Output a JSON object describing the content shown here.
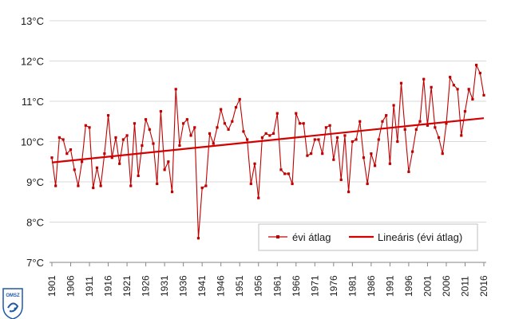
{
  "chart_data": {
    "type": "line",
    "ylim": [
      7,
      13
    ],
    "xlim": [
      1901,
      2016
    ],
    "yticks": [
      7,
      8,
      9,
      10,
      11,
      12,
      13
    ],
    "ytick_labels": [
      "7°C",
      "8°C",
      "9°C",
      "10°C",
      "11°C",
      "12°C",
      "13°C"
    ],
    "xticks": [
      1901,
      1906,
      1911,
      1916,
      1921,
      1926,
      1931,
      1936,
      1941,
      1946,
      1951,
      1956,
      1961,
      1966,
      1971,
      1976,
      1981,
      1986,
      1991,
      1996,
      2001,
      2006,
      2011,
      2016
    ],
    "xtick_labels": [
      "1901",
      "1906",
      "1911",
      "1916",
      "1921",
      "1926",
      "1931",
      "1936",
      "1941",
      "1946",
      "1951",
      "1956",
      "1961",
      "1966",
      "1971",
      "1976",
      "1981",
      "1986",
      "1991",
      "1996",
      "2001",
      "2006",
      "2011",
      "2016"
    ],
    "grid": "horizontal",
    "legend_position": "bottom-right",
    "series": [
      {
        "name": "évi átlag",
        "color": "#c00000",
        "marker": "square",
        "x": [
          1901,
          1902,
          1903,
          1904,
          1905,
          1906,
          1907,
          1908,
          1909,
          1910,
          1911,
          1912,
          1913,
          1914,
          1915,
          1916,
          1917,
          1918,
          1919,
          1920,
          1921,
          1922,
          1923,
          1924,
          1925,
          1926,
          1927,
          1928,
          1929,
          1930,
          1931,
          1932,
          1933,
          1934,
          1935,
          1936,
          1937,
          1938,
          1939,
          1940,
          1941,
          1942,
          1943,
          1944,
          1945,
          1946,
          1947,
          1948,
          1949,
          1950,
          1951,
          1952,
          1953,
          1954,
          1955,
          1956,
          1957,
          1958,
          1959,
          1960,
          1961,
          1962,
          1963,
          1964,
          1965,
          1966,
          1967,
          1968,
          1969,
          1970,
          1971,
          1972,
          1973,
          1974,
          1975,
          1976,
          1977,
          1978,
          1979,
          1980,
          1981,
          1982,
          1983,
          1984,
          1985,
          1986,
          1987,
          1988,
          1989,
          1990,
          1991,
          1992,
          1993,
          1994,
          1995,
          1996,
          1997,
          1998,
          1999,
          2000,
          2001,
          2002,
          2003,
          2004,
          2005,
          2006,
          2007,
          2008,
          2009,
          2010,
          2011,
          2012,
          2013,
          2014,
          2015,
          2016
        ],
        "values": [
          9.6,
          8.9,
          10.1,
          10.05,
          9.7,
          9.8,
          9.3,
          8.9,
          9.5,
          10.4,
          10.35,
          8.85,
          9.35,
          8.9,
          9.7,
          10.65,
          9.6,
          10.1,
          9.45,
          10.05,
          10.15,
          8.9,
          10.45,
          9.15,
          9.9,
          10.55,
          10.3,
          9.95,
          8.95,
          10.75,
          9.3,
          9.5,
          8.75,
          11.3,
          9.9,
          10.45,
          10.55,
          10.15,
          10.35,
          7.6,
          8.85,
          8.9,
          10.2,
          9.95,
          10.35,
          10.8,
          10.45,
          10.3,
          10.5,
          10.85,
          11.05,
          10.25,
          10.05,
          8.95,
          9.45,
          8.6,
          10.1,
          10.2,
          10.15,
          10.2,
          10.7,
          9.3,
          9.2,
          9.2,
          8.95,
          10.7,
          10.45,
          10.45,
          9.65,
          9.7,
          10.05,
          10.05,
          9.7,
          10.35,
          10.4,
          9.55,
          10.1,
          9.05,
          10.15,
          8.75,
          10.0,
          10.05,
          10.5,
          9.6,
          8.95,
          9.7,
          9.4,
          10.05,
          10.5,
          10.65,
          9.45,
          10.9,
          10.0,
          11.45,
          10.3,
          9.25,
          9.75,
          10.3,
          10.5,
          11.55,
          10.4,
          11.35,
          10.35,
          10.1,
          9.7,
          10.45,
          11.6,
          11.4,
          11.3,
          10.15,
          10.75,
          11.3,
          11.05,
          11.9,
          11.7,
          11.15
        ]
      },
      {
        "name": "Lineáris (évi átlag)",
        "color": "#d40000",
        "type": "trendline",
        "x": [
          1901,
          2016
        ],
        "values": [
          9.48,
          10.58
        ]
      }
    ]
  },
  "logo": {
    "text": "OMSZ",
    "color": "#1f5aa6"
  }
}
